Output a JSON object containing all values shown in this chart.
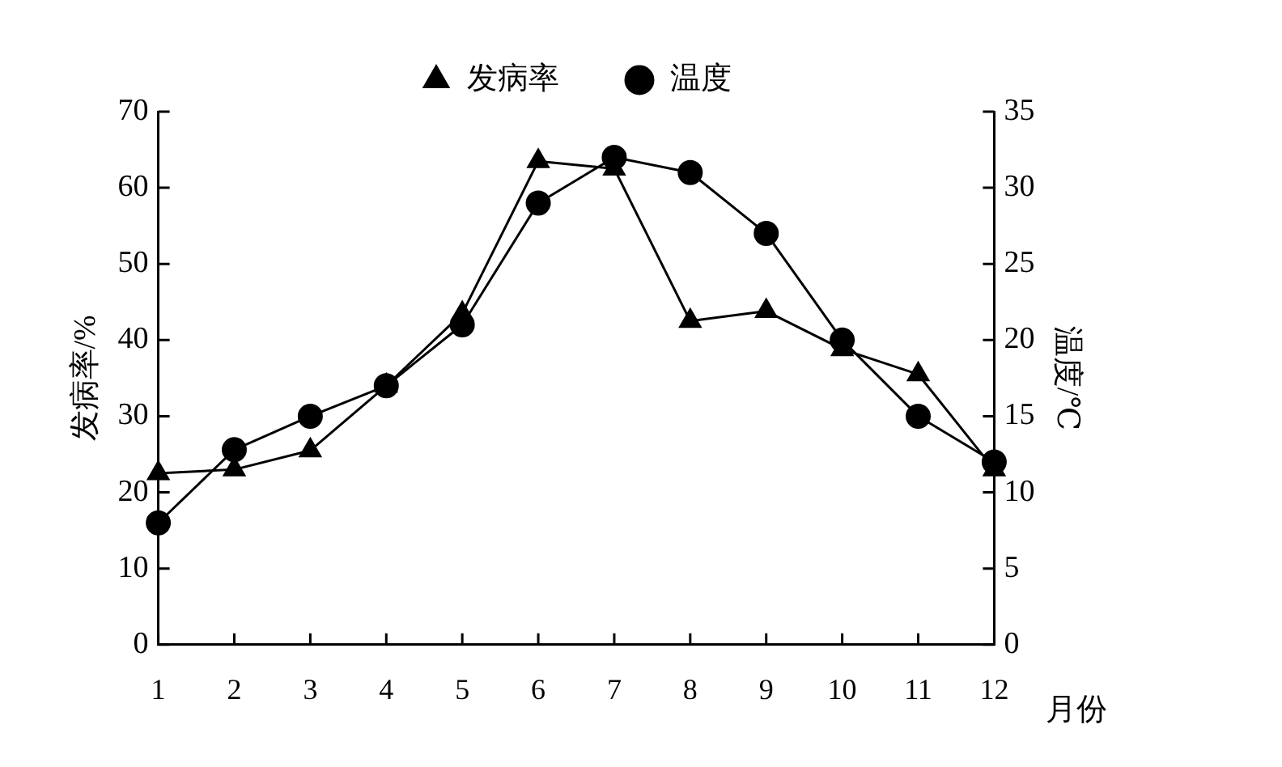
{
  "chart_data": {
    "type": "line",
    "xlabel": "月份",
    "ylabel": "发病率/%",
    "y2label": "温度/℃",
    "x": [
      1,
      2,
      3,
      4,
      5,
      6,
      7,
      8,
      9,
      10,
      11,
      12
    ],
    "series": [
      {
        "name": "发病率",
        "color": "#000000",
        "marker": "triangle",
        "values": [
          22.5,
          23,
          25.5,
          34,
          43.5,
          63.5,
          62.5,
          42.5,
          43.8,
          38.8,
          35.5,
          23
        ]
      },
      {
        "name": "温度",
        "color": "#000000",
        "marker": "circle",
        "axis": "y2",
        "values": [
          8,
          12.8,
          15,
          17,
          21,
          29,
          32,
          31,
          27,
          20,
          15,
          12
        ]
      }
    ],
    "xlim": [
      1,
      12
    ],
    "xticks": [
      1,
      2,
      3,
      4,
      5,
      6,
      7,
      8,
      9,
      10,
      11,
      12
    ],
    "ylim": [
      0,
      70
    ],
    "yticks": [
      0,
      10,
      20,
      30,
      40,
      50,
      60,
      70
    ],
    "y2lim": [
      0,
      35
    ],
    "y2ticks": [
      0,
      5,
      10,
      15,
      20,
      25,
      30,
      35
    ],
    "grid": false,
    "legend": "top",
    "line_style": "solid"
  }
}
